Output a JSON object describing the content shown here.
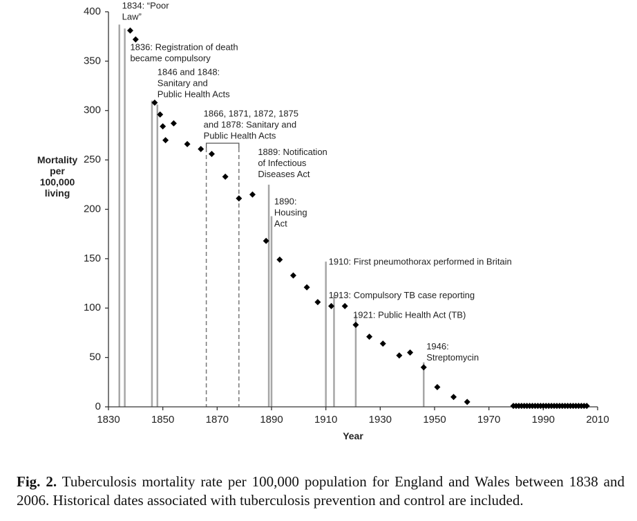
{
  "chart_data": {
    "type": "scatter",
    "xlabel": "Year",
    "ylabel": [
      "Mortality",
      "per",
      "100,000",
      "living"
    ],
    "xlim": [
      1830,
      2010
    ],
    "ylim": [
      0,
      400
    ],
    "xticks": [
      1830,
      1850,
      1870,
      1890,
      1910,
      1930,
      1950,
      1970,
      1990,
      2010
    ],
    "yticks": [
      0,
      50,
      100,
      150,
      200,
      250,
      300,
      350,
      400
    ],
    "grid": false,
    "legend": "none",
    "marker_color": "#000000",
    "event_line_color": "#a6a6a6",
    "points": [
      [
        1838,
        381
      ],
      [
        1840,
        372
      ],
      [
        1847,
        308
      ],
      [
        1849,
        296
      ],
      [
        1850,
        284
      ],
      [
        1851,
        270
      ],
      [
        1854,
        287
      ],
      [
        1859,
        266
      ],
      [
        1864,
        261
      ],
      [
        1868,
        256
      ],
      [
        1873,
        233
      ],
      [
        1878,
        211
      ],
      [
        1883,
        215
      ],
      [
        1888,
        168
      ],
      [
        1893,
        149
      ],
      [
        1898,
        133
      ],
      [
        1903,
        121
      ],
      [
        1907,
        106
      ],
      [
        1912,
        102
      ],
      [
        1917,
        102
      ],
      [
        1921,
        83
      ],
      [
        1926,
        71
      ],
      [
        1931,
        64
      ],
      [
        1937,
        52
      ],
      [
        1941,
        55
      ],
      [
        1946,
        40
      ],
      [
        1951,
        20
      ],
      [
        1957,
        10
      ],
      [
        1962,
        5
      ],
      [
        1979,
        1
      ],
      [
        1980,
        1
      ],
      [
        1981,
        1
      ],
      [
        1982,
        1
      ],
      [
        1983,
        1
      ],
      [
        1984,
        1
      ],
      [
        1985,
        1
      ],
      [
        1986,
        1
      ],
      [
        1987,
        1
      ],
      [
        1988,
        1
      ],
      [
        1989,
        1
      ],
      [
        1990,
        1
      ],
      [
        1991,
        1
      ],
      [
        1992,
        1
      ],
      [
        1993,
        1
      ],
      [
        1994,
        1
      ],
      [
        1995,
        1
      ],
      [
        1996,
        1
      ],
      [
        1997,
        1
      ],
      [
        1998,
        1
      ],
      [
        1999,
        1
      ],
      [
        2000,
        1
      ],
      [
        2001,
        1
      ],
      [
        2002,
        1
      ],
      [
        2003,
        1
      ],
      [
        2004,
        1
      ],
      [
        2005,
        1
      ],
      [
        2006,
        1
      ]
    ],
    "events": [
      {
        "year": 1834,
        "top": 387
      },
      {
        "year": 1836,
        "top": 383
      },
      {
        "year": 1846,
        "top": 310
      },
      {
        "year": 1848,
        "top": 306
      },
      {
        "year": 1889,
        "top": 225
      },
      {
        "year": 1890,
        "top": 193
      },
      {
        "year": 1910,
        "top": 147
      },
      {
        "year": 1913,
        "top": 113
      },
      {
        "year": 1921,
        "top": 93
      },
      {
        "year": 1946,
        "top": 45
      }
    ],
    "dashed_events": [
      {
        "year": 1866,
        "top": 262
      },
      {
        "year": 1878,
        "top": 262
      }
    ],
    "annotations": [
      {
        "lines": [
          "1834: “Poor",
          "Law”"
        ],
        "x": 1835,
        "y": 403
      },
      {
        "lines": [
          "1836: Registration of death",
          "became compulsory"
        ],
        "x": 1838,
        "y": 361
      },
      {
        "lines": [
          "1846 and 1848:",
          "Sanitary and",
          "Public Health Acts"
        ],
        "x": 1848,
        "y": 336
      },
      {
        "lines": [
          "1866, 1871, 1872, 1875",
          "and 1878: Sanitary and",
          "Public Health Acts"
        ],
        "x": 1865,
        "y": 294
      },
      {
        "lines": [
          "1889: Notification",
          "of Infectious",
          "Diseases Act"
        ],
        "x": 1885,
        "y": 255
      },
      {
        "lines": [
          "1890:",
          "Housing",
          "Act"
        ],
        "x": 1891,
        "y": 205
      },
      {
        "lines": [
          "1910: First pneumothorax performed in Britain"
        ],
        "x": 1911,
        "y": 144
      },
      {
        "lines": [
          "1913: Compulsory TB case reporting"
        ],
        "x": 1911,
        "y": 110
      },
      {
        "lines": [
          "1921: Public Health Act (TB)"
        ],
        "x": 1920,
        "y": 90
      },
      {
        "lines": [
          "1946:",
          "Streptomycin"
        ],
        "x": 1947,
        "y": 58
      }
    ]
  },
  "caption": {
    "label": "Fig. 2.",
    "text": "Tuberculosis mortality rate per 100,000 population for England and Wales between 1838 and 2006. Historical dates associated with tuberculosis prevention and control are included."
  }
}
